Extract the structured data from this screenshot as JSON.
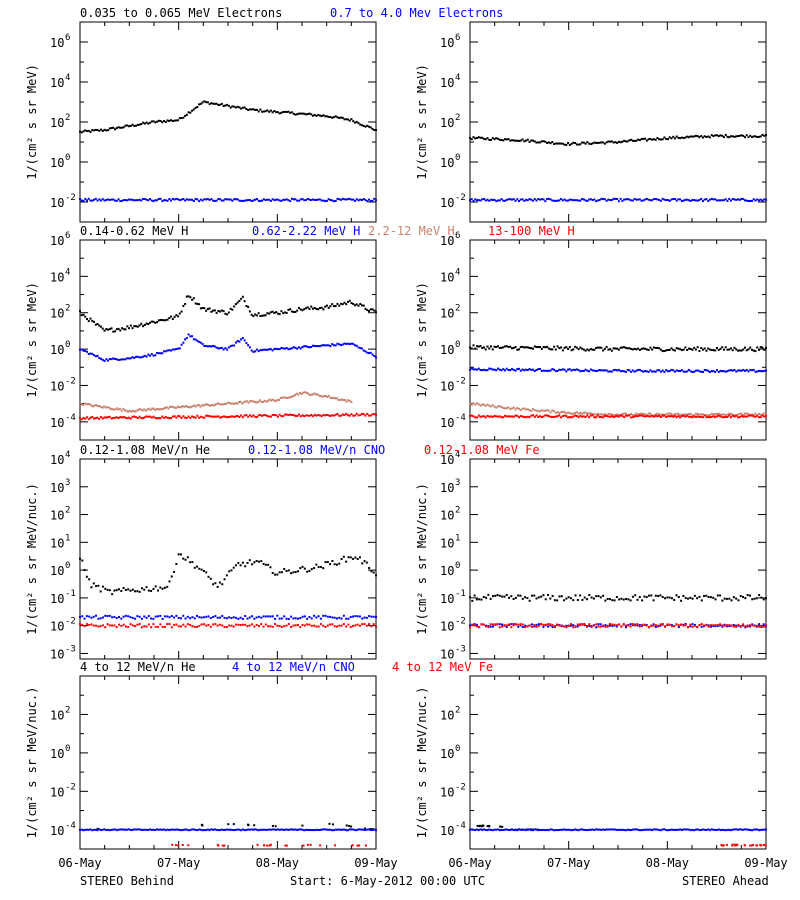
{
  "colors": {
    "black": "#000000",
    "blue": "#0000ff",
    "tan": "#c8826e",
    "red": "#ff0000",
    "frame": "#000000",
    "bg": "#ffffff"
  },
  "rows": [
    {
      "legend": [
        {
          "text": "0.035 to 0.065 MeV Electrons",
          "color": "#000000"
        },
        {
          "text": "0.7 to 4.0 Mev Electrons",
          "color": "#0000ff"
        }
      ],
      "ylabel": "1/(cm² s sr MeV)",
      "yticks": [
        "-2",
        "0",
        "2",
        "4",
        "6"
      ]
    },
    {
      "legend": [
        {
          "text": "0.14-0.62 MeV H",
          "color": "#000000"
        },
        {
          "text": "0.62-2.22 MeV H",
          "color": "#0000ff"
        },
        {
          "text": "2.2-12 MeV H",
          "color": "#c8826e"
        },
        {
          "text": "13-100 MeV H",
          "color": "#ff0000"
        }
      ],
      "ylabel": "1/(cm² s sr MeV)",
      "yticks": [
        "-4",
        "-2",
        "0",
        "2",
        "4",
        "6"
      ]
    },
    {
      "legend": [
        {
          "text": "0.12-1.08 MeV/n He",
          "color": "#000000"
        },
        {
          "text": "0.12-1.08 MeV/n CNO",
          "color": "#0000ff"
        },
        {
          "text": "0.12-1.08 MeV Fe",
          "color": "#ff0000"
        }
      ],
      "ylabel": "1/(cm² s sr MeV/nuc.)",
      "yticks": [
        "-3",
        "-2",
        "-1",
        "0",
        "1",
        "2",
        "3",
        "4"
      ]
    },
    {
      "legend": [
        {
          "text": "4 to 12 MeV/n He",
          "color": "#000000"
        },
        {
          "text": "4 to 12 MeV/n CNO",
          "color": "#0000ff"
        },
        {
          "text": "4 to 12 MeV Fe",
          "color": "#ff0000"
        }
      ],
      "ylabel": "1/(cm² s sr MeV/nuc.)",
      "yticks": [
        "-4",
        "-2",
        "0",
        "2"
      ]
    }
  ],
  "xticks": [
    "06-May",
    "07-May",
    "08-May",
    "09-May"
  ],
  "footer": {
    "left": "STEREO Behind",
    "center": "Start:  6-May-2012 00:00 UTC",
    "right": "STEREO Ahead"
  },
  "chart_data": [
    {
      "type": "scatter",
      "spacecraft": "STEREO Behind",
      "row": 1,
      "x_days": [
        0,
        3
      ],
      "y_log10_range": [
        -3,
        7
      ],
      "series": [
        {
          "name": "0.035 to 0.065 MeV Electrons",
          "x": [
            0,
            0.25,
            0.5,
            0.75,
            1.0,
            1.25,
            1.5,
            1.75,
            2.0,
            2.25,
            2.5,
            2.75,
            3.0
          ],
          "y_log10": [
            1.5,
            1.6,
            1.8,
            2.0,
            2.1,
            3.0,
            2.8,
            2.6,
            2.5,
            2.4,
            2.3,
            2.1,
            1.6
          ]
        },
        {
          "name": "0.7 to 4.0 Mev Electrons",
          "x": [
            0,
            1.5,
            3.0
          ],
          "y_log10": [
            -1.9,
            -1.9,
            -1.9
          ]
        }
      ]
    },
    {
      "type": "scatter",
      "spacecraft": "STEREO Ahead",
      "row": 1,
      "x_days": [
        0,
        3
      ],
      "y_log10_range": [
        -3,
        7
      ],
      "series": [
        {
          "name": "0.035 to 0.065 MeV Electrons",
          "x": [
            0,
            0.5,
            1.0,
            1.5,
            2.0,
            2.5,
            3.0
          ],
          "y_log10": [
            1.2,
            1.1,
            0.9,
            1.0,
            1.2,
            1.3,
            1.3
          ]
        },
        {
          "name": "0.7 to 4.0 Mev Electrons",
          "x": [
            0,
            1.5,
            3.0
          ],
          "y_log10": [
            -1.9,
            -1.9,
            -1.9
          ]
        }
      ]
    },
    {
      "type": "scatter",
      "spacecraft": "STEREO Behind",
      "row": 2,
      "x_days": [
        0,
        3
      ],
      "y_log10_range": [
        -5,
        6
      ],
      "series": [
        {
          "name": "0.14-0.62 MeV H",
          "x": [
            0,
            0.25,
            0.5,
            0.75,
            1.0,
            1.1,
            1.25,
            1.5,
            1.65,
            1.75,
            2.0,
            2.25,
            2.5,
            2.75,
            3.0
          ],
          "y_log10": [
            2.0,
            1.0,
            1.2,
            1.5,
            1.8,
            3.0,
            2.2,
            2.0,
            2.8,
            1.9,
            2.0,
            2.2,
            2.3,
            2.6,
            2.0
          ]
        },
        {
          "name": "0.62-2.22 MeV H",
          "x": [
            0,
            0.25,
            0.5,
            0.75,
            1.0,
            1.1,
            1.25,
            1.5,
            1.65,
            1.75,
            2.0,
            2.25,
            2.5,
            2.75,
            3.0
          ],
          "y_log10": [
            0.0,
            -0.6,
            -0.5,
            -0.3,
            0.0,
            0.8,
            0.2,
            0.0,
            0.6,
            -0.1,
            0.0,
            0.1,
            0.2,
            0.3,
            -0.4
          ]
        },
        {
          "name": "2.2-12 MeV H",
          "x": [
            0,
            0.5,
            1.0,
            1.5,
            2.0,
            2.25,
            2.5,
            2.75
          ],
          "y_log10": [
            -3.0,
            -3.4,
            -3.2,
            -3.0,
            -2.8,
            -2.4,
            -2.6,
            -2.9
          ]
        },
        {
          "name": "13-100 MeV H",
          "x": [
            0,
            1.5,
            3.0
          ],
          "y_log10": [
            -3.8,
            -3.7,
            -3.6
          ]
        }
      ]
    },
    {
      "type": "scatter",
      "spacecraft": "STEREO Ahead",
      "row": 2,
      "x_days": [
        0,
        3
      ],
      "y_log10_range": [
        -5,
        6
      ],
      "series": [
        {
          "name": "0.14-0.62 MeV H",
          "x": [
            0,
            1.5,
            3.0
          ],
          "y_log10": [
            0.1,
            0.0,
            0.0
          ]
        },
        {
          "name": "0.62-2.22 MeV H",
          "x": [
            0,
            1.5,
            3.0
          ],
          "y_log10": [
            -1.1,
            -1.2,
            -1.2
          ]
        },
        {
          "name": "2.2-12 MeV H",
          "x": [
            0,
            0.5,
            1.0,
            1.5,
            2.0,
            2.5,
            3.0
          ],
          "y_log10": [
            -3.0,
            -3.3,
            -3.5,
            -3.6,
            -3.6,
            -3.6,
            -3.6
          ]
        },
        {
          "name": "13-100 MeV H",
          "x": [
            0,
            1.5,
            3.0
          ],
          "y_log10": [
            -3.7,
            -3.7,
            -3.7
          ]
        }
      ]
    },
    {
      "type": "scatter",
      "spacecraft": "STEREO Behind",
      "row": 3,
      "x_days": [
        0,
        3
      ],
      "y_log10_range": [
        -3.2,
        4
      ],
      "series": [
        {
          "name": "0.12-1.08 MeV/n He",
          "x": [
            0,
            0.1,
            0.3,
            0.6,
            0.9,
            1.0,
            1.2,
            1.4,
            1.6,
            1.8,
            2.0,
            2.2,
            2.4,
            2.6,
            2.8,
            3.0
          ],
          "y_log10": [
            0.5,
            -0.5,
            -0.8,
            -0.7,
            -0.6,
            0.6,
            0.1,
            -0.6,
            0.2,
            0.3,
            -0.1,
            0.0,
            0.1,
            0.3,
            0.5,
            -0.1
          ]
        },
        {
          "name": "0.12-1.08 MeV/n CNO",
          "x": [
            0,
            1.5,
            3.0
          ],
          "y_log10": [
            -1.7,
            -1.7,
            -1.7
          ]
        },
        {
          "name": "0.12-1.08 MeV Fe",
          "x": [
            0,
            1.5,
            3.0
          ],
          "y_log10": [
            -2.0,
            -2.0,
            -2.0
          ]
        }
      ]
    },
    {
      "type": "scatter",
      "spacecraft": "STEREO Ahead",
      "row": 3,
      "x_days": [
        0,
        3
      ],
      "y_log10_range": [
        -3.2,
        4
      ],
      "series": [
        {
          "name": "0.12-1.08 MeV/n He",
          "x": [
            0,
            1.5,
            3.0
          ],
          "y_log10": [
            -1.0,
            -1.0,
            -1.0
          ]
        },
        {
          "name": "0.12-1.08 MeV/n CNO",
          "x": [
            0,
            1.5,
            3.0
          ],
          "y_log10": [
            -2.0,
            -2.0,
            -2.0
          ]
        },
        {
          "name": "0.12-1.08 MeV Fe",
          "x": [
            0,
            1.5,
            3.0
          ],
          "y_log10": [
            -2.0,
            -2.0,
            -2.0
          ]
        }
      ]
    },
    {
      "type": "scatter",
      "spacecraft": "STEREO Behind",
      "row": 4,
      "x_days": [
        0,
        3
      ],
      "y_log10_range": [
        -5,
        4
      ],
      "series": [
        {
          "name": "4 to 12 MeV/n He",
          "x": [
            0,
            1.5,
            2.0,
            2.6,
            3.0
          ],
          "y_log10": [
            -4.0,
            -3.7,
            -3.8,
            -3.7,
            -4.0
          ]
        },
        {
          "name": "4 to 12 MeV/n CNO",
          "x": [
            0,
            1.5,
            3.0
          ],
          "y_log10": [
            -4.0,
            -4.0,
            -4.0
          ]
        },
        {
          "name": "4 to 12 MeV Fe",
          "x": [
            1.2,
            2.0,
            2.6
          ],
          "y_log10": [
            -4.8,
            -4.8,
            -4.8
          ]
        }
      ]
    },
    {
      "type": "scatter",
      "spacecraft": "STEREO Ahead",
      "row": 4,
      "x_days": [
        0,
        3
      ],
      "y_log10_range": [
        -5,
        4
      ],
      "series": [
        {
          "name": "4 to 12 MeV/n He",
          "x": [
            0.3,
            0.4
          ],
          "y_log10": [
            -3.8,
            -4.0
          ]
        },
        {
          "name": "4 to 12 MeV/n CNO",
          "x": [
            0,
            1.5,
            3.0
          ],
          "y_log10": [
            -4.0,
            -4.0,
            -4.0
          ]
        },
        {
          "name": "4 to 12 MeV Fe",
          "x": [
            2.8
          ],
          "y_log10": [
            -4.8
          ]
        }
      ]
    }
  ]
}
